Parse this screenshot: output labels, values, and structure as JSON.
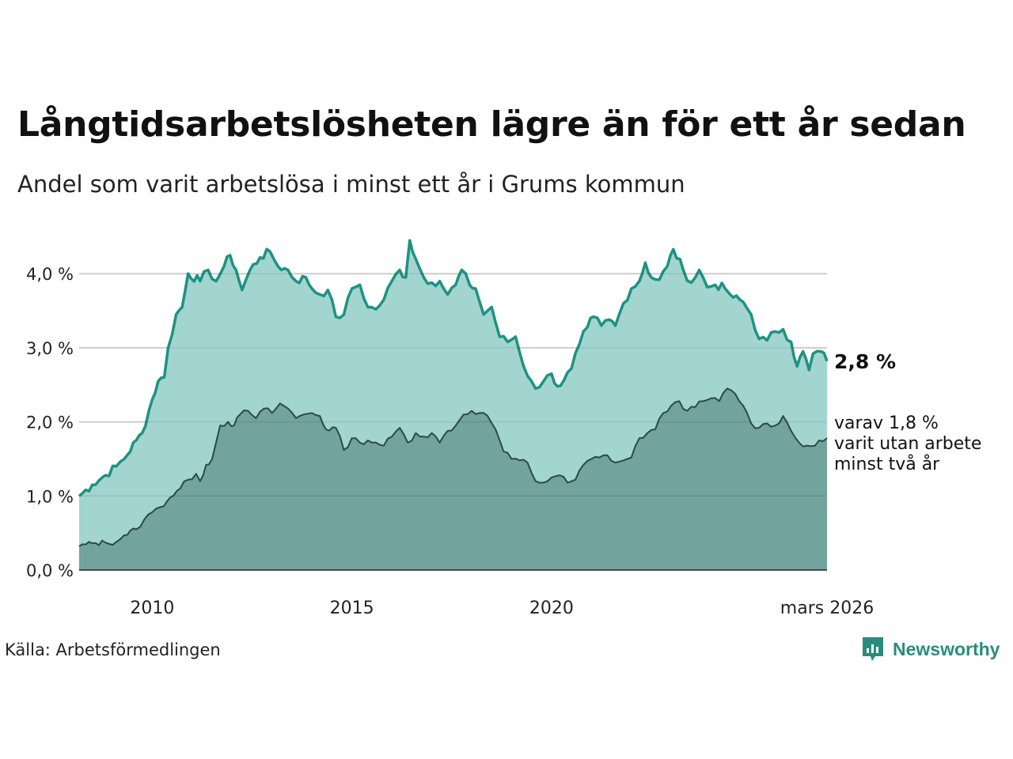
{
  "title": "Långtidsarbetslösheten lägre än för ett år sedan",
  "subtitle": "Andel som varit arbetslösa i minst ett år i Grums kommun",
  "source": "Källa: Arbetsförmedlingen",
  "brand": {
    "name": "Newsworthy",
    "icon": "newsworthy-logo-icon"
  },
  "colors": {
    "series1_fill": "#a3d5d0",
    "series1_line": "#1f9282",
    "series2_fill": "#6e9e97",
    "series2_line": "#2c4a44",
    "grid": "#dddddd"
  },
  "chart_data": {
    "type": "area",
    "title": "Långtidsarbetslösheten lägre än för ett år sedan",
    "subtitle": "Andel som varit arbetslösa i minst ett år i Grums kommun",
    "x_start": "2008-03",
    "x_end": "2026-03",
    "frequency": "monthly",
    "x_ticks": [
      {
        "value": 2010,
        "label": "2010"
      },
      {
        "value": 2015,
        "label": "2015"
      },
      {
        "value": 2020,
        "label": "2020"
      },
      {
        "value": 2026.17,
        "label": "mars 2026"
      }
    ],
    "ylim": [
      0,
      4.6
    ],
    "y_ticks": [
      {
        "value": 0,
        "label": "0,0 %"
      },
      {
        "value": 1,
        "label": "1,0 %"
      },
      {
        "value": 2,
        "label": "2,0 %"
      },
      {
        "value": 3,
        "label": "3,0 %"
      },
      {
        "value": 4,
        "label": "4,0 %"
      }
    ],
    "series": [
      {
        "name": "Arbetslösa minst ett år",
        "end_label": "2,8 %",
        "keypoints": [
          [
            2008.17,
            1.0
          ],
          [
            2008.5,
            1.15
          ],
          [
            2008.83,
            1.28
          ],
          [
            2009.1,
            1.4
          ],
          [
            2009.3,
            1.5
          ],
          [
            2009.6,
            1.75
          ],
          [
            2009.75,
            1.85
          ],
          [
            2010.0,
            2.3
          ],
          [
            2010.15,
            2.55
          ],
          [
            2010.3,
            2.6
          ],
          [
            2010.4,
            3.0
          ],
          [
            2010.6,
            3.45
          ],
          [
            2010.75,
            3.55
          ],
          [
            2010.9,
            4.0
          ],
          [
            2011.2,
            3.9
          ],
          [
            2011.4,
            4.05
          ],
          [
            2011.6,
            3.9
          ],
          [
            2011.8,
            4.1
          ],
          [
            2011.95,
            4.25
          ],
          [
            2012.1,
            4.05
          ],
          [
            2012.25,
            3.78
          ],
          [
            2012.45,
            4.05
          ],
          [
            2012.7,
            4.22
          ],
          [
            2012.95,
            4.3
          ],
          [
            2013.15,
            4.1
          ],
          [
            2013.4,
            4.05
          ],
          [
            2013.6,
            3.9
          ],
          [
            2013.85,
            3.95
          ],
          [
            2014.0,
            3.8
          ],
          [
            2014.2,
            3.72
          ],
          [
            2014.4,
            3.78
          ],
          [
            2014.6,
            3.42
          ],
          [
            2014.8,
            3.45
          ],
          [
            2015.0,
            3.8
          ],
          [
            2015.2,
            3.85
          ],
          [
            2015.4,
            3.55
          ],
          [
            2015.6,
            3.52
          ],
          [
            2015.8,
            3.65
          ],
          [
            2016.0,
            3.9
          ],
          [
            2016.2,
            4.05
          ],
          [
            2016.35,
            3.95
          ],
          [
            2016.45,
            4.45
          ],
          [
            2016.6,
            4.2
          ],
          [
            2016.8,
            3.95
          ],
          [
            2017.0,
            3.88
          ],
          [
            2017.2,
            3.9
          ],
          [
            2017.4,
            3.72
          ],
          [
            2017.6,
            3.85
          ],
          [
            2017.75,
            4.05
          ],
          [
            2017.95,
            3.85
          ],
          [
            2018.1,
            3.8
          ],
          [
            2018.3,
            3.45
          ],
          [
            2018.5,
            3.55
          ],
          [
            2018.7,
            3.15
          ],
          [
            2018.9,
            3.08
          ],
          [
            2019.1,
            3.15
          ],
          [
            2019.3,
            2.75
          ],
          [
            2019.5,
            2.55
          ],
          [
            2019.6,
            2.45
          ],
          [
            2019.8,
            2.55
          ],
          [
            2020.0,
            2.65
          ],
          [
            2020.15,
            2.48
          ],
          [
            2020.3,
            2.55
          ],
          [
            2020.5,
            2.72
          ],
          [
            2020.7,
            3.05
          ],
          [
            2020.9,
            3.28
          ],
          [
            2021.05,
            3.42
          ],
          [
            2021.25,
            3.3
          ],
          [
            2021.45,
            3.38
          ],
          [
            2021.6,
            3.3
          ],
          [
            2021.8,
            3.6
          ],
          [
            2022.0,
            3.8
          ],
          [
            2022.2,
            3.9
          ],
          [
            2022.35,
            4.15
          ],
          [
            2022.5,
            3.95
          ],
          [
            2022.7,
            3.92
          ],
          [
            2022.9,
            4.1
          ],
          [
            2023.05,
            4.33
          ],
          [
            2023.3,
            4.05
          ],
          [
            2023.5,
            3.88
          ],
          [
            2023.7,
            4.05
          ],
          [
            2023.9,
            3.82
          ],
          [
            2024.1,
            3.85
          ],
          [
            2024.35,
            3.8
          ],
          [
            2024.55,
            3.68
          ],
          [
            2024.8,
            3.62
          ],
          [
            2025.0,
            3.45
          ],
          [
            2025.2,
            3.12
          ],
          [
            2025.4,
            3.1
          ],
          [
            2025.6,
            3.22
          ],
          [
            2025.8,
            3.25
          ],
          [
            2026.0,
            3.08
          ],
          [
            2026.15,
            2.75
          ],
          [
            2026.3,
            2.95
          ],
          [
            2026.45,
            2.7
          ],
          [
            2026.55,
            2.92
          ],
          [
            2026.75,
            2.95
          ],
          [
            2026.9,
            2.82
          ]
        ]
      },
      {
        "name": "varav utan arbete minst två år",
        "end_label_lines": [
          "varav 1,8 %",
          "varit utan arbete",
          "minst två år"
        ],
        "keypoints": [
          [
            2008.17,
            0.32
          ],
          [
            2008.5,
            0.36
          ],
          [
            2008.83,
            0.37
          ],
          [
            2009.1,
            0.38
          ],
          [
            2009.3,
            0.47
          ],
          [
            2009.6,
            0.55
          ],
          [
            2009.8,
            0.68
          ],
          [
            2010.0,
            0.78
          ],
          [
            2010.2,
            0.85
          ],
          [
            2010.45,
            0.98
          ],
          [
            2010.7,
            1.1
          ],
          [
            2010.9,
            1.22
          ],
          [
            2011.1,
            1.3
          ],
          [
            2011.2,
            1.2
          ],
          [
            2011.35,
            1.42
          ],
          [
            2011.5,
            1.5
          ],
          [
            2011.7,
            1.95
          ],
          [
            2011.9,
            2.0
          ],
          [
            2012.05,
            1.95
          ],
          [
            2012.2,
            2.1
          ],
          [
            2012.4,
            2.15
          ],
          [
            2012.6,
            2.05
          ],
          [
            2012.8,
            2.18
          ],
          [
            2013.0,
            2.12
          ],
          [
            2013.2,
            2.25
          ],
          [
            2013.4,
            2.18
          ],
          [
            2013.6,
            2.05
          ],
          [
            2013.8,
            2.1
          ],
          [
            2014.0,
            2.12
          ],
          [
            2014.2,
            2.08
          ],
          [
            2014.35,
            1.9
          ],
          [
            2014.6,
            1.92
          ],
          [
            2014.8,
            1.62
          ],
          [
            2015.0,
            1.78
          ],
          [
            2015.2,
            1.72
          ],
          [
            2015.4,
            1.75
          ],
          [
            2015.6,
            1.72
          ],
          [
            2015.8,
            1.68
          ],
          [
            2016.0,
            1.8
          ],
          [
            2016.2,
            1.92
          ],
          [
            2016.4,
            1.72
          ],
          [
            2016.6,
            1.85
          ],
          [
            2016.8,
            1.8
          ],
          [
            2017.0,
            1.85
          ],
          [
            2017.2,
            1.72
          ],
          [
            2017.4,
            1.88
          ],
          [
            2017.6,
            1.95
          ],
          [
            2017.8,
            2.1
          ],
          [
            2018.0,
            2.15
          ],
          [
            2018.2,
            2.12
          ],
          [
            2018.4,
            2.08
          ],
          [
            2018.6,
            1.9
          ],
          [
            2018.8,
            1.6
          ],
          [
            2019.0,
            1.5
          ],
          [
            2019.2,
            1.48
          ],
          [
            2019.4,
            1.45
          ],
          [
            2019.6,
            1.2
          ],
          [
            2019.8,
            1.18
          ],
          [
            2020.0,
            1.25
          ],
          [
            2020.2,
            1.28
          ],
          [
            2020.4,
            1.18
          ],
          [
            2020.6,
            1.22
          ],
          [
            2020.8,
            1.42
          ],
          [
            2021.0,
            1.5
          ],
          [
            2021.2,
            1.52
          ],
          [
            2021.4,
            1.55
          ],
          [
            2021.6,
            1.45
          ],
          [
            2021.8,
            1.48
          ],
          [
            2022.0,
            1.52
          ],
          [
            2022.2,
            1.78
          ],
          [
            2022.4,
            1.85
          ],
          [
            2022.6,
            1.9
          ],
          [
            2022.8,
            2.12
          ],
          [
            2023.0,
            2.22
          ],
          [
            2023.2,
            2.28
          ],
          [
            2023.4,
            2.15
          ],
          [
            2023.6,
            2.2
          ],
          [
            2023.8,
            2.28
          ],
          [
            2024.0,
            2.32
          ],
          [
            2024.2,
            2.28
          ],
          [
            2024.4,
            2.45
          ],
          [
            2024.6,
            2.38
          ],
          [
            2024.8,
            2.22
          ],
          [
            2025.0,
            1.98
          ],
          [
            2025.2,
            1.92
          ],
          [
            2025.4,
            1.98
          ],
          [
            2025.6,
            1.95
          ],
          [
            2025.8,
            2.08
          ],
          [
            2026.0,
            1.88
          ],
          [
            2026.2,
            1.72
          ],
          [
            2026.4,
            1.68
          ],
          [
            2026.6,
            1.68
          ],
          [
            2026.8,
            1.74
          ],
          [
            2026.9,
            1.78
          ]
        ]
      }
    ]
  }
}
